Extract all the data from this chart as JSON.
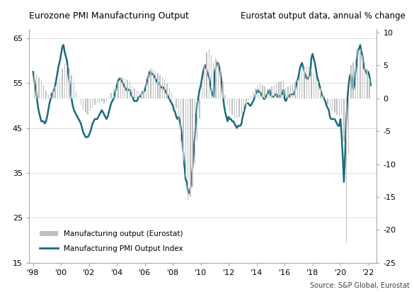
{
  "title_left": "Eurozone PMI Manufacturing Output",
  "title_right": "Eurostat output data, annual % change",
  "source": "Source: S&P Global, Eurostat",
  "left_ylim": [
    15,
    67
  ],
  "right_ylim": [
    -25,
    10.5
  ],
  "left_yticks": [
    15,
    25,
    35,
    45,
    55,
    65
  ],
  "right_yticks": [
    -25,
    -20,
    -15,
    -10,
    -5,
    0,
    5,
    10
  ],
  "xtick_positions": [
    1998,
    2000,
    2002,
    2004,
    2006,
    2008,
    2010,
    2012,
    2014,
    2016,
    2018,
    2020,
    2022
  ],
  "xtick_labels": [
    "'98",
    "'00",
    "'02",
    "'04",
    "'06",
    "'08",
    "'10",
    "'12",
    "'14",
    "'16",
    "'18",
    "'20",
    "'22"
  ],
  "pmi_color": "#1a6b7c",
  "bar_color": "#c0c0c0",
  "background_color": "#ffffff",
  "grid_color": "#d8d8d8",
  "pmi_data": {
    "dates": [
      1998.0,
      1998.083,
      1998.167,
      1998.25,
      1998.333,
      1998.417,
      1998.5,
      1998.583,
      1998.667,
      1998.75,
      1998.833,
      1998.917,
      1999.0,
      1999.083,
      1999.167,
      1999.25,
      1999.333,
      1999.417,
      1999.5,
      1999.583,
      1999.667,
      1999.75,
      1999.833,
      1999.917,
      2000.0,
      2000.083,
      2000.167,
      2000.25,
      2000.333,
      2000.417,
      2000.5,
      2000.583,
      2000.667,
      2000.75,
      2000.833,
      2000.917,
      2001.0,
      2001.083,
      2001.167,
      2001.25,
      2001.333,
      2001.417,
      2001.5,
      2001.583,
      2001.667,
      2001.75,
      2001.833,
      2001.917,
      2002.0,
      2002.083,
      2002.167,
      2002.25,
      2002.333,
      2002.417,
      2002.5,
      2002.583,
      2002.667,
      2002.75,
      2002.833,
      2002.917,
      2003.0,
      2003.083,
      2003.167,
      2003.25,
      2003.333,
      2003.417,
      2003.5,
      2003.583,
      2003.667,
      2003.75,
      2003.833,
      2003.917,
      2004.0,
      2004.083,
      2004.167,
      2004.25,
      2004.333,
      2004.417,
      2004.5,
      2004.583,
      2004.667,
      2004.75,
      2004.833,
      2004.917,
      2005.0,
      2005.083,
      2005.167,
      2005.25,
      2005.333,
      2005.417,
      2005.5,
      2005.583,
      2005.667,
      2005.75,
      2005.833,
      2005.917,
      2006.0,
      2006.083,
      2006.167,
      2006.25,
      2006.333,
      2006.417,
      2006.5,
      2006.583,
      2006.667,
      2006.75,
      2006.833,
      2006.917,
      2007.0,
      2007.083,
      2007.167,
      2007.25,
      2007.333,
      2007.417,
      2007.5,
      2007.583,
      2007.667,
      2007.75,
      2007.833,
      2007.917,
      2008.0,
      2008.083,
      2008.167,
      2008.25,
      2008.333,
      2008.417,
      2008.5,
      2008.583,
      2008.667,
      2008.75,
      2008.833,
      2008.917,
      2009.0,
      2009.083,
      2009.167,
      2009.25,
      2009.333,
      2009.417,
      2009.5,
      2009.583,
      2009.667,
      2009.75,
      2009.833,
      2009.917,
      2010.0,
      2010.083,
      2010.167,
      2010.25,
      2010.333,
      2010.417,
      2010.5,
      2010.583,
      2010.667,
      2010.75,
      2010.833,
      2010.917,
      2011.0,
      2011.083,
      2011.167,
      2011.25,
      2011.333,
      2011.417,
      2011.5,
      2011.583,
      2011.667,
      2011.75,
      2011.833,
      2011.917,
      2012.0,
      2012.083,
      2012.167,
      2012.25,
      2012.333,
      2012.417,
      2012.5,
      2012.583,
      2012.667,
      2012.75,
      2012.833,
      2012.917,
      2013.0,
      2013.083,
      2013.167,
      2013.25,
      2013.333,
      2013.417,
      2013.5,
      2013.583,
      2013.667,
      2013.75,
      2013.833,
      2013.917,
      2014.0,
      2014.083,
      2014.167,
      2014.25,
      2014.333,
      2014.417,
      2014.5,
      2014.583,
      2014.667,
      2014.75,
      2014.833,
      2014.917,
      2015.0,
      2015.083,
      2015.167,
      2015.25,
      2015.333,
      2015.417,
      2015.5,
      2015.583,
      2015.667,
      2015.75,
      2015.833,
      2015.917,
      2016.0,
      2016.083,
      2016.167,
      2016.25,
      2016.333,
      2016.417,
      2016.5,
      2016.583,
      2016.667,
      2016.75,
      2016.833,
      2016.917,
      2017.0,
      2017.083,
      2017.167,
      2017.25,
      2017.333,
      2017.417,
      2017.5,
      2017.583,
      2017.667,
      2017.75,
      2017.833,
      2017.917,
      2018.0,
      2018.083,
      2018.167,
      2018.25,
      2018.333,
      2018.417,
      2018.5,
      2018.583,
      2018.667,
      2018.75,
      2018.833,
      2018.917,
      2019.0,
      2019.083,
      2019.167,
      2019.25,
      2019.333,
      2019.417,
      2019.5,
      2019.583,
      2019.667,
      2019.75,
      2019.833,
      2019.917,
      2020.0,
      2020.083,
      2020.167,
      2020.25,
      2020.333,
      2020.417,
      2020.5,
      2020.583,
      2020.667,
      2020.75,
      2020.833,
      2020.917,
      2021.0,
      2021.083,
      2021.167,
      2021.25,
      2021.333,
      2021.417,
      2021.5,
      2021.583,
      2021.667,
      2021.75,
      2021.833,
      2021.917,
      2022.0,
      2022.083,
      2022.167
    ],
    "values": [
      57.5,
      55.5,
      54.0,
      52.0,
      50.0,
      48.5,
      47.5,
      46.5,
      46.5,
      46.5,
      46.0,
      46.5,
      47.5,
      49.0,
      50.5,
      51.5,
      52.5,
      53.0,
      53.5,
      54.5,
      56.0,
      57.5,
      59.0,
      60.0,
      61.5,
      63.0,
      63.5,
      62.0,
      61.0,
      60.0,
      57.5,
      55.5,
      53.5,
      51.5,
      50.0,
      49.0,
      48.5,
      48.0,
      47.5,
      47.0,
      46.5,
      46.0,
      45.0,
      44.0,
      43.5,
      43.0,
      43.0,
      43.0,
      43.5,
      44.0,
      45.0,
      46.0,
      46.5,
      47.0,
      47.0,
      47.0,
      47.5,
      48.0,
      48.5,
      49.0,
      48.5,
      48.0,
      47.5,
      47.0,
      47.5,
      48.5,
      49.5,
      50.5,
      51.0,
      51.5,
      52.5,
      53.5,
      54.5,
      55.5,
      56.0,
      56.0,
      55.5,
      55.0,
      54.5,
      54.0,
      53.5,
      53.5,
      53.5,
      53.5,
      52.5,
      52.0,
      51.5,
      51.0,
      51.0,
      51.0,
      51.5,
      52.0,
      52.0,
      52.5,
      53.0,
      53.0,
      53.5,
      54.5,
      55.5,
      56.5,
      57.5,
      57.5,
      57.0,
      57.0,
      56.5,
      56.0,
      55.5,
      55.0,
      55.0,
      54.5,
      54.0,
      54.0,
      54.0,
      53.5,
      53.0,
      52.5,
      52.0,
      51.5,
      51.0,
      50.5,
      50.0,
      49.0,
      48.5,
      47.5,
      47.0,
      47.5,
      46.5,
      45.0,
      42.5,
      39.5,
      36.5,
      33.5,
      33.0,
      31.0,
      30.5,
      31.5,
      33.5,
      36.5,
      40.0,
      43.5,
      47.5,
      50.5,
      52.0,
      53.5,
      54.5,
      56.0,
      57.5,
      58.5,
      59.0,
      58.0,
      57.0,
      56.5,
      55.0,
      53.5,
      52.5,
      52.0,
      57.5,
      58.5,
      59.5,
      59.5,
      58.5,
      57.0,
      55.0,
      52.5,
      50.0,
      48.5,
      47.5,
      46.5,
      47.5,
      47.0,
      47.0,
      46.5,
      46.5,
      46.0,
      45.5,
      45.0,
      45.5,
      45.5,
      45.5,
      46.0,
      47.5,
      48.5,
      49.5,
      50.5,
      50.5,
      50.5,
      50.0,
      50.0,
      50.5,
      51.0,
      51.5,
      52.5,
      53.0,
      53.5,
      53.0,
      53.0,
      52.5,
      52.0,
      51.5,
      51.5,
      52.0,
      52.5,
      53.0,
      53.5,
      52.5,
      52.0,
      52.0,
      52.0,
      52.5,
      52.5,
      52.0,
      52.0,
      52.0,
      52.5,
      52.5,
      53.5,
      51.5,
      51.0,
      51.5,
      52.0,
      52.0,
      52.5,
      52.5,
      52.5,
      52.5,
      53.5,
      54.5,
      55.5,
      56.5,
      58.0,
      59.0,
      59.5,
      58.5,
      57.5,
      56.5,
      56.0,
      56.0,
      56.5,
      57.0,
      60.5,
      61.5,
      60.5,
      59.5,
      58.0,
      56.5,
      55.5,
      54.5,
      53.5,
      52.5,
      52.0,
      51.5,
      51.0,
      50.0,
      49.5,
      49.0,
      47.5,
      47.0,
      47.0,
      47.0,
      47.0,
      46.5,
      46.0,
      45.5,
      45.5,
      47.0,
      43.5,
      38.5,
      33.0,
      39.0,
      46.5,
      51.5,
      54.5,
      56.5,
      57.0,
      55.0,
      53.5,
      54.5,
      57.5,
      59.5,
      62.5,
      62.5,
      63.5,
      62.0,
      61.0,
      58.5,
      58.0,
      57.5,
      57.0,
      57.5,
      56.5,
      54.5
    ]
  },
  "eurostat_data": {
    "dates": [
      1998.083,
      1998.25,
      1998.417,
      1998.583,
      1998.75,
      1998.917,
      1999.083,
      1999.25,
      1999.417,
      1999.583,
      1999.75,
      1999.917,
      2000.083,
      2000.25,
      2000.417,
      2000.583,
      2000.75,
      2000.917,
      2001.083,
      2001.25,
      2001.417,
      2001.583,
      2001.75,
      2001.917,
      2002.083,
      2002.25,
      2002.417,
      2002.583,
      2002.75,
      2002.917,
      2003.083,
      2003.25,
      2003.417,
      2003.583,
      2003.75,
      2003.917,
      2004.083,
      2004.25,
      2004.417,
      2004.583,
      2004.75,
      2004.917,
      2005.083,
      2005.25,
      2005.417,
      2005.583,
      2005.75,
      2005.917,
      2006.083,
      2006.25,
      2006.417,
      2006.583,
      2006.75,
      2006.917,
      2007.083,
      2007.25,
      2007.417,
      2007.583,
      2007.75,
      2007.917,
      2008.083,
      2008.25,
      2008.417,
      2008.583,
      2008.75,
      2008.917,
      2009.083,
      2009.25,
      2009.417,
      2009.583,
      2009.75,
      2009.917,
      2010.083,
      2010.25,
      2010.417,
      2010.583,
      2010.75,
      2010.917,
      2011.083,
      2011.25,
      2011.417,
      2011.583,
      2011.75,
      2011.917,
      2012.083,
      2012.25,
      2012.417,
      2012.583,
      2012.75,
      2012.917,
      2013.083,
      2013.25,
      2013.417,
      2013.583,
      2013.75,
      2013.917,
      2014.083,
      2014.25,
      2014.417,
      2014.583,
      2014.75,
      2014.917,
      2015.083,
      2015.25,
      2015.417,
      2015.583,
      2015.75,
      2015.917,
      2016.083,
      2016.25,
      2016.417,
      2016.583,
      2016.75,
      2016.917,
      2017.083,
      2017.25,
      2017.417,
      2017.583,
      2017.75,
      2017.917,
      2018.083,
      2018.25,
      2018.417,
      2018.583,
      2018.75,
      2018.917,
      2019.083,
      2019.25,
      2019.417,
      2019.583,
      2019.75,
      2019.917,
      2020.083,
      2020.25,
      2020.417,
      2020.583,
      2020.75,
      2020.917,
      2021.083,
      2021.25,
      2021.417,
      2021.583,
      2021.75,
      2021.917,
      2022.083
    ],
    "values": [
      3.8,
      3.5,
      3.2,
      2.8,
      2.0,
      1.2,
      0.5,
      0.8,
      1.2,
      1.8,
      2.5,
      3.2,
      4.5,
      5.2,
      5.0,
      4.5,
      3.5,
      2.5,
      1.0,
      0.0,
      -1.0,
      -1.8,
      -2.2,
      -2.5,
      -2.0,
      -1.5,
      -1.0,
      -0.8,
      -0.8,
      -0.5,
      -0.8,
      -0.5,
      0.2,
      0.8,
      1.5,
      2.0,
      2.5,
      3.0,
      3.2,
      3.0,
      2.8,
      2.5,
      1.8,
      1.5,
      1.2,
      1.0,
      1.0,
      1.2,
      3.0,
      4.0,
      4.5,
      4.5,
      4.2,
      3.8,
      3.5,
      3.2,
      2.8,
      2.2,
      1.5,
      0.8,
      0.0,
      -1.5,
      -3.5,
      -6.5,
      -9.5,
      -12.0,
      -15.5,
      -15.0,
      -13.5,
      -10.0,
      -6.5,
      -3.0,
      2.0,
      5.0,
      7.0,
      7.5,
      6.5,
      5.5,
      6.0,
      5.5,
      4.5,
      2.5,
      0.5,
      -1.0,
      -2.0,
      -2.5,
      -3.0,
      -3.0,
      -2.8,
      -2.5,
      -2.0,
      -1.2,
      -0.2,
      0.5,
      1.0,
      1.5,
      2.0,
      2.2,
      2.0,
      1.8,
      1.5,
      1.5,
      1.8,
      2.0,
      2.2,
      2.5,
      2.5,
      2.8,
      1.5,
      1.8,
      2.0,
      2.2,
      2.5,
      2.8,
      3.5,
      4.2,
      4.8,
      5.0,
      4.8,
      4.5,
      4.0,
      3.5,
      2.5,
      1.5,
      0.5,
      -0.2,
      -1.0,
      -1.5,
      -2.0,
      -2.2,
      -2.5,
      -2.8,
      -2.5,
      -6.5,
      -22.0,
      -8.5,
      5.0,
      5.5,
      6.0,
      7.5,
      7.5,
      6.5,
      5.5,
      4.5,
      3.0
    ]
  }
}
